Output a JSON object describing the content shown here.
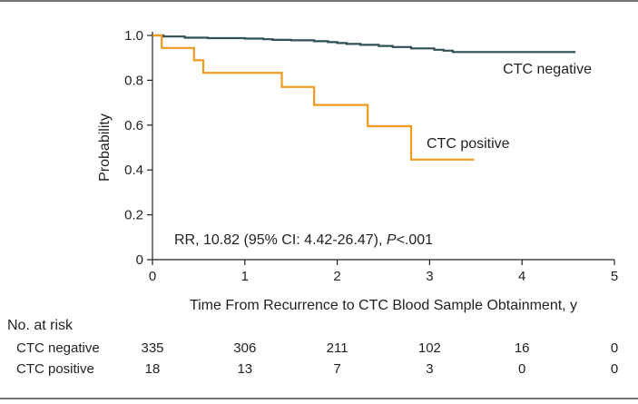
{
  "chart_data": {
    "type": "line",
    "title": "",
    "xlabel": "Time From Recurrence to CTC Blood Sample Obtainment, y",
    "ylabel": "Probability",
    "xlim": [
      0,
      5
    ],
    "ylim": [
      0,
      1.0
    ],
    "x_ticks": [
      "0",
      "1",
      "2",
      "3",
      "4",
      "5"
    ],
    "y_ticks": [
      "0",
      "0.2",
      "0.4",
      "0.6",
      "0.8",
      "1.0"
    ],
    "grid": false,
    "annotation": {
      "prefix": "RR, 10.82 (95% CI: 4.42-26.47), ",
      "p_label": "P",
      "suffix": "<.001"
    },
    "series": [
      {
        "name": "CTC negative",
        "color": "#2f4f56",
        "step_points": [
          [
            0,
            1.0
          ],
          [
            0.12,
            0.995
          ],
          [
            0.35,
            0.99
          ],
          [
            0.6,
            0.988
          ],
          [
            1.0,
            0.986
          ],
          [
            1.2,
            0.983
          ],
          [
            1.3,
            0.98
          ],
          [
            1.5,
            0.978
          ],
          [
            1.75,
            0.974
          ],
          [
            1.9,
            0.97
          ],
          [
            2.0,
            0.966
          ],
          [
            2.1,
            0.962
          ],
          [
            2.25,
            0.958
          ],
          [
            2.45,
            0.953
          ],
          [
            2.6,
            0.948
          ],
          [
            2.8,
            0.942
          ],
          [
            3.05,
            0.936
          ],
          [
            3.15,
            0.932
          ],
          [
            3.25,
            0.926
          ],
          [
            4.58,
            0.926
          ]
        ]
      },
      {
        "name": "CTC positive",
        "color": "#f29a1e",
        "step_points": [
          [
            0,
            1.0
          ],
          [
            0.1,
            0.944
          ],
          [
            0.45,
            0.889
          ],
          [
            0.55,
            0.833
          ],
          [
            1.4,
            0.77
          ],
          [
            1.75,
            0.69
          ],
          [
            2.33,
            0.595
          ],
          [
            2.8,
            0.446
          ],
          [
            3.48,
            0.446
          ]
        ]
      }
    ],
    "risk_table": {
      "title": "No. at risk",
      "times": [
        0,
        1,
        2,
        3,
        4,
        5
      ],
      "rows": [
        {
          "label": "CTC negative",
          "values": [
            "335",
            "306",
            "211",
            "102",
            "16",
            "0"
          ]
        },
        {
          "label": "CTC positive",
          "values": [
            "18",
            "13",
            "7",
            "3",
            "0",
            "0"
          ]
        }
      ]
    }
  }
}
